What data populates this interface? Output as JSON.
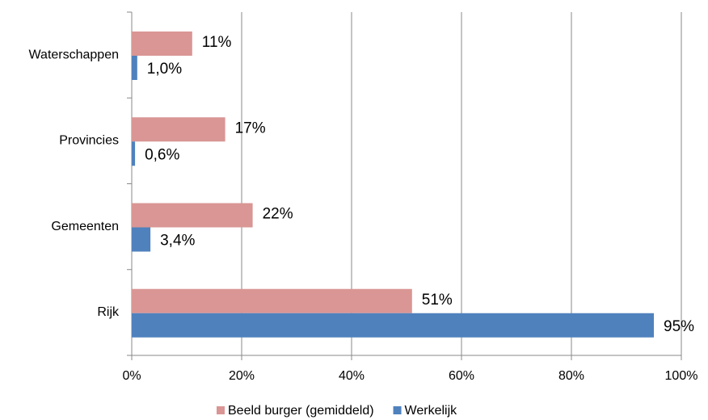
{
  "chart_data": {
    "type": "barh",
    "categories": [
      "Waterschappen",
      "Provincies",
      "Gemeenten",
      "Rijk"
    ],
    "series": [
      {
        "name": "Beeld burger (gemiddeld)",
        "color": "#d99694",
        "values": [
          11,
          17,
          22,
          51
        ],
        "value_labels": [
          "11%",
          "17%",
          "22%",
          "51%"
        ]
      },
      {
        "name": "Werkelijk",
        "color": "#4f81bd",
        "values": [
          1.0,
          0.6,
          3.4,
          95
        ],
        "value_labels": [
          "1,0%",
          "0,6%",
          "3,4%",
          "95%"
        ]
      }
    ],
    "xlim": [
      0,
      100
    ],
    "xticks": [
      {
        "value": 0,
        "label": "0%"
      },
      {
        "value": 20,
        "label": "20%"
      },
      {
        "value": 40,
        "label": "40%"
      },
      {
        "value": 60,
        "label": "60%"
      },
      {
        "value": 80,
        "label": "80%"
      },
      {
        "value": 100,
        "label": "100%"
      }
    ],
    "grid": true,
    "legend": "bottom"
  }
}
